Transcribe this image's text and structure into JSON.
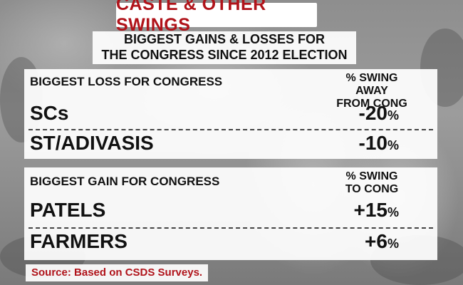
{
  "title": "CASTE & OTHER SWINGS",
  "subtitle": {
    "line1": "BIGGEST GAINS & LOSSES FOR",
    "line2": "THE CONGRESS SINCE 2012 ELECTION"
  },
  "loss_section": {
    "header": "BIGGEST LOSS FOR CONGRESS",
    "value_header_line1": "% SWING AWAY",
    "value_header_line2": "FROM CONG",
    "rows": [
      {
        "label": "SCs",
        "value": "-20",
        "unit": "%"
      },
      {
        "label": "ST/ADIVASIS",
        "value": "-10",
        "unit": "%"
      }
    ]
  },
  "gain_section": {
    "header": "BIGGEST GAIN FOR CONGRESS",
    "value_header_line1": "% SWING",
    "value_header_line2": "TO CONG",
    "rows": [
      {
        "label": "PATELS",
        "value": "+15",
        "unit": "%"
      },
      {
        "label": "FARMERS",
        "value": "+6",
        "unit": "%"
      }
    ]
  },
  "source": "Source: Based on CSDS Surveys.",
  "colors": {
    "accent": "#b0131a",
    "text": "#111111",
    "panel": "#ffffff"
  }
}
